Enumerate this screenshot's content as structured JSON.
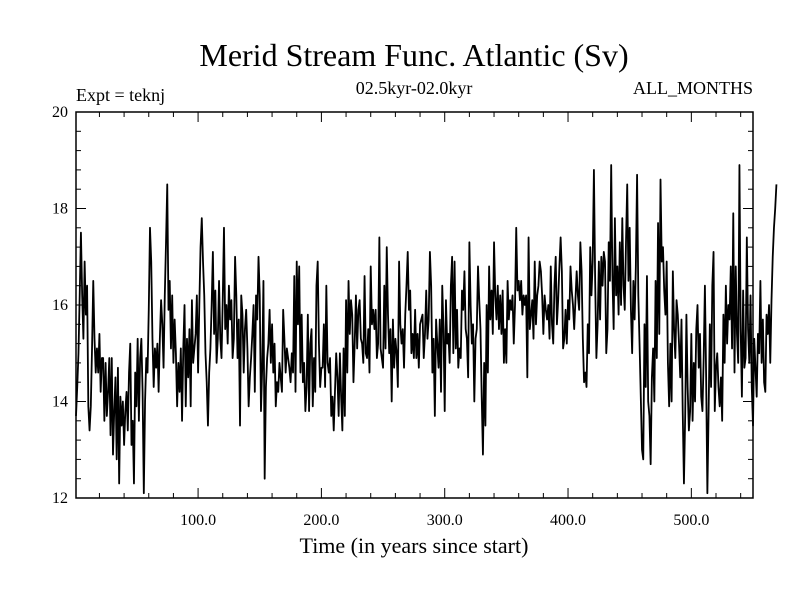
{
  "chart_data": {
    "type": "line",
    "title": "Merid Stream Func. Atlantic (Sv)",
    "subtitle": "02.5kyr-02.0kyr",
    "left_label": "Expt = teknj",
    "right_label": "ALL_MONTHS",
    "xlabel": "Time (in years since start)",
    "ylabel": "",
    "xlim": [
      1,
      550
    ],
    "ylim": [
      12,
      20
    ],
    "x_ticks": [
      100,
      200,
      300,
      400,
      500
    ],
    "x_tick_labels": [
      "100.0",
      "200.0",
      "300.0",
      "400.0",
      "500.0"
    ],
    "y_ticks": [
      12,
      14,
      16,
      18,
      20
    ],
    "y_tick_labels": [
      "12",
      "14",
      "16",
      "18",
      "20"
    ],
    "grid": false,
    "series": [
      {
        "name": "Merid Stream Func. Atlantic",
        "x_start": 1,
        "x_step": 1,
        "color": "#000000",
        "values": [
          13.7,
          14.3,
          15.0,
          16.2,
          17.5,
          16.2,
          15.3,
          16.9,
          15.8,
          16.4,
          13.9,
          13.4,
          13.9,
          15.1,
          16.5,
          15.3,
          14.6,
          15.1,
          14.6,
          15.4,
          14.2,
          14.9,
          14.9,
          13.6,
          14.8,
          13.7,
          14.2,
          14.9,
          13.3,
          14.9,
          12.9,
          13.8,
          14.5,
          12.8,
          14.7,
          12.3,
          14.1,
          13.5,
          14.0,
          13.1,
          13.8,
          14.2,
          13.4,
          14.6,
          15.2,
          13.1,
          13.6,
          12.3,
          14.6,
          13.9,
          15.3,
          13.6,
          14.9,
          15.3,
          14.2,
          12.1,
          14.0,
          14.9,
          14.6,
          15.9,
          17.6,
          16.9,
          15.3,
          14.3,
          15.1,
          14.7,
          15.2,
          14.2,
          15.3,
          16.1,
          15.6,
          14.7,
          16.2,
          17.3,
          18.5,
          15.9,
          16.5,
          15.1,
          16.2,
          14.8,
          15.7,
          15.0,
          13.9,
          14.8,
          14.2,
          15.1,
          13.6,
          15.1,
          16.0,
          13.9,
          15.3,
          14.5,
          15.5,
          13.9,
          16.1,
          14.8,
          15.1,
          15.4,
          16.2,
          14.6,
          16.0,
          17.2,
          17.8,
          16.9,
          16.2,
          15.0,
          14.4,
          13.5,
          14.6,
          15.1,
          16.0,
          17.1,
          15.4,
          16.3,
          14.8,
          15.3,
          16.5,
          15.3,
          14.9,
          16.1,
          17.6,
          15.5,
          16.0,
          15.2,
          16.4,
          15.7,
          16.1,
          14.9,
          15.3,
          17.0,
          16.2,
          14.9,
          15.7,
          13.5,
          16.2,
          15.8,
          14.6,
          15.5,
          15.9,
          15.1,
          13.9,
          14.5,
          14.9,
          15.4,
          16.0,
          14.2,
          16.2,
          15.7,
          17.0,
          16.2,
          13.8,
          14.7,
          16.5,
          12.4,
          14.3,
          14.9,
          15.2,
          15.9,
          14.8,
          15.6,
          14.6,
          15.2,
          13.9,
          14.4,
          14.2,
          14.8,
          14.5,
          14.2,
          15.9,
          15.3,
          14.6,
          15.1,
          14.9,
          14.7,
          14.4,
          15.0,
          14.6,
          16.6,
          14.2,
          16.9,
          15.6,
          16.8,
          14.6,
          15.8,
          14.4,
          14.8,
          13.8,
          14.3,
          15.8,
          13.8,
          15.2,
          15.5,
          13.9,
          14.9,
          14.2,
          16.4,
          16.9,
          15.2,
          14.3,
          14.7,
          14.7,
          15.6,
          14.3,
          16.4,
          14.8,
          14.6,
          14.9,
          13.7,
          14.1,
          13.4,
          14.2,
          15.0,
          14.5,
          13.7,
          15.0,
          14.1,
          13.4,
          15.1,
          13.7,
          16.1,
          14.6,
          16.5,
          15.4,
          16.1,
          15.8,
          14.4,
          15.2,
          16.2,
          15.1,
          15.9,
          16.1,
          15.3,
          15.2,
          14.8,
          16.6,
          15.0,
          14.9,
          15.5,
          14.6,
          16.8,
          15.6,
          15.9,
          15.5,
          15.9,
          14.9,
          15.2,
          17.4,
          15.1,
          14.9,
          14.7,
          16.4,
          15.1,
          17.2,
          15.8,
          15.0,
          15.5,
          14.0,
          15.7,
          14.7,
          15.3,
          15.0,
          14.3,
          16.9,
          15.6,
          15.2,
          15.5,
          14.7,
          15.8,
          16.4,
          17.1,
          15.9,
          16.3,
          15.0,
          15.4,
          14.9,
          15.9,
          14.9,
          15.4,
          14.7,
          15.6,
          15.7,
          15.8,
          14.9,
          15.4,
          16.3,
          15.3,
          15.7,
          17.1,
          16.4,
          14.6,
          15.3,
          13.7,
          15.7,
          15.2,
          14.7,
          15.7,
          14.2,
          16.4,
          15.5,
          13.8,
          16.1,
          15.2,
          15.4,
          14.8,
          16.4,
          17.0,
          15.0,
          16.9,
          15.1,
          15.9,
          14.7,
          15.1,
          14.9,
          16.3,
          15.9,
          16.7,
          15.5,
          15.3,
          14.5,
          17.3,
          16.0,
          15.2,
          15.6,
          14.0,
          15.3,
          15.5,
          16.8,
          16.1,
          15.5,
          14.1,
          12.9,
          14.8,
          13.5,
          16.0,
          14.6,
          16.8,
          15.7,
          16.3,
          15.4,
          17.3,
          16.2,
          15.7,
          16.4,
          15.5,
          16.2,
          15.4,
          16.3,
          14.8,
          15.5,
          14.8,
          16.5,
          15.7,
          16.1,
          15.9,
          16.2,
          15.2,
          16.0,
          17.6,
          16.3,
          16.5,
          16.1,
          16.5,
          15.8,
          16.2,
          16.0,
          16.2,
          14.5,
          17.4,
          15.5,
          15.8,
          16.1,
          15.3,
          16.9,
          15.6,
          16.2,
          16.4,
          16.9,
          16.7,
          16.2,
          15.4,
          16.2,
          15.9,
          15.7,
          16.0,
          15.3,
          16.8,
          15.6,
          15.2,
          16.4,
          17.0,
          15.6,
          16.1,
          16.8,
          17.4,
          16.7,
          15.1,
          15.3,
          15.9,
          15.2,
          16.1,
          15.7,
          16.8,
          16.3,
          16.0,
          15.5,
          16.1,
          16.7,
          16.2,
          15.9,
          17.3,
          16.7,
          15.3,
          14.4,
          14.6,
          14.3,
          15.6,
          15.0,
          17.2,
          16.2,
          16.9,
          18.8,
          16.5,
          14.9,
          15.6,
          16.9,
          15.7,
          17.0,
          16.4,
          17.1,
          16.9,
          15.0,
          15.5,
          17.3,
          16.5,
          18.9,
          16.6,
          15.5,
          17.8,
          16.2,
          16.8,
          15.8,
          17.3,
          16.0,
          17.8,
          16.4,
          15.9,
          17.3,
          18.5,
          16.5,
          17.6,
          15.9,
          15.0,
          16.5,
          15.7,
          16.8,
          18.7,
          16.2,
          15.2,
          14.1,
          13.0,
          12.8,
          15.6,
          14.3,
          16.6,
          14.0,
          13.7,
          12.7,
          14.5,
          15.1,
          14.0,
          16.5,
          14.9,
          17.7,
          15.4,
          18.6,
          16.9,
          17.2,
          16.3,
          15.8,
          16.9,
          14.8,
          13.9,
          15.2,
          14.0,
          16.7,
          15.5,
          14.9,
          16.1,
          15.8,
          15.2,
          14.5,
          15.7,
          13.8,
          12.3,
          13.7,
          15.8,
          14.3,
          13.4,
          13.8,
          15.4,
          13.6,
          14.8,
          14.0,
          15.5,
          16.0,
          14.7,
          15.4,
          14.1,
          13.8,
          14.9,
          16.4,
          14.5,
          12.1,
          13.8,
          15.6,
          14.3,
          16.4,
          17.1,
          13.8,
          14.7,
          15.0,
          14.3,
          13.9,
          14.5,
          13.6,
          15.8,
          14.8,
          16.4,
          15.2,
          16.0,
          15.7,
          16.8,
          15.1,
          17.9,
          14.6,
          16.8,
          15.4,
          14.8,
          18.9,
          15.5,
          14.1,
          16.3,
          14.7,
          14.9,
          17.4,
          15.5,
          14.8,
          16.2,
          14.3,
          13.5,
          15.3,
          14.7,
          14.1,
          15.4,
          15.0,
          16.5,
          14.8,
          15.7,
          14.4,
          14.2,
          15.8,
          15.4,
          16.0,
          14.8,
          16.1,
          17.0,
          17.6,
          18.0,
          18.5
        ]
      }
    ]
  }
}
